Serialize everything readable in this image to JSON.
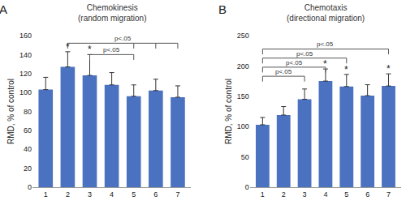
{
  "chart_data": [
    {
      "type": "bar",
      "label": "A",
      "title": "Chemokinesis",
      "subtitle": "(random migration)",
      "y_label": "RMD, % of control",
      "categories": [
        "1",
        "2",
        "3",
        "4",
        "5",
        "6",
        "7"
      ],
      "values": [
        103,
        127,
        118,
        108,
        96,
        102,
        95
      ],
      "errors": [
        13,
        16,
        22,
        13,
        12,
        12,
        12
      ],
      "color": "#4a72c0",
      "ylim": [
        0,
        160
      ],
      "yticks": [
        0,
        20,
        40,
        60,
        80,
        100,
        120,
        140,
        160
      ],
      "grid": false,
      "annotations": [
        {
          "category": "2",
          "text": "*"
        },
        {
          "category": "3",
          "text": "*"
        }
      ],
      "brackets": [
        {
          "from": "2",
          "to": "7",
          "drops": [
            "2",
            "5",
            "6",
            "7"
          ],
          "y": 152,
          "text": "p<.05"
        },
        {
          "from": "3",
          "to": "5",
          "drops": [
            "3",
            "5"
          ],
          "y": 140,
          "text": "p<.05"
        }
      ]
    },
    {
      "type": "bar",
      "label": "B",
      "title": "Chemotaxis",
      "subtitle": "(directional migration)",
      "y_label": "RMD, % of control",
      "categories": [
        "1",
        "2",
        "3",
        "4",
        "5",
        "6",
        "7"
      ],
      "values": [
        103,
        119,
        145,
        175,
        166,
        151,
        167
      ],
      "errors": [
        12,
        14,
        17,
        20,
        20,
        18,
        20
      ],
      "color": "#4a72c0",
      "ylim": [
        0,
        250
      ],
      "yticks": [
        0,
        50,
        100,
        150,
        200,
        250
      ],
      "grid": false,
      "annotations": [
        {
          "category": "4",
          "text": "*"
        },
        {
          "category": "5",
          "text": "*"
        },
        {
          "category": "7",
          "text": "*"
        }
      ],
      "brackets": [
        {
          "from": "1",
          "to": "7",
          "drops": [
            "1",
            "7"
          ],
          "y": 228,
          "text": "p<.05"
        },
        {
          "from": "1",
          "to": "5",
          "drops": [
            "1",
            "5"
          ],
          "y": 213,
          "text": "p<.05"
        },
        {
          "from": "1",
          "to": "4",
          "drops": [
            "1",
            "4"
          ],
          "y": 198,
          "text": "p<.05"
        },
        {
          "from": "1",
          "to": "3",
          "drops": [
            "1",
            "3"
          ],
          "y": 183,
          "text": "p<.05"
        }
      ]
    }
  ]
}
